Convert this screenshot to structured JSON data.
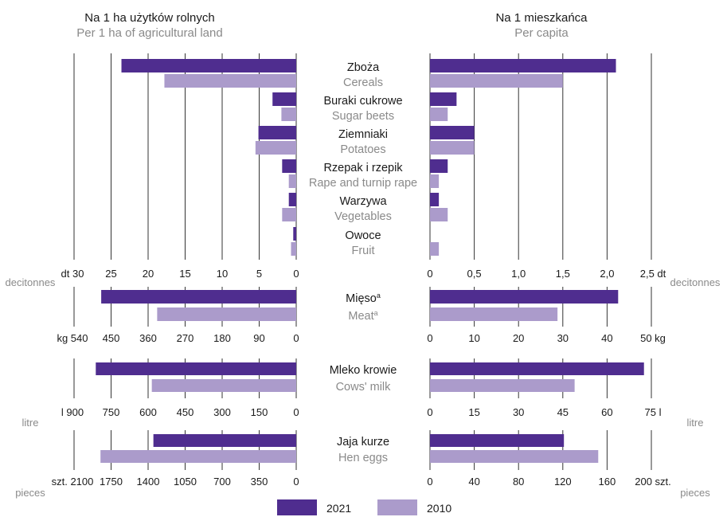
{
  "colors": {
    "y2021": "#4f2d8f",
    "y2010": "#ab9bcb",
    "grid": "#333333",
    "text": "#1a1a1a",
    "muted": "#8a8a8a"
  },
  "headers": {
    "left_pl": "Na 1 ha użytków rolnych",
    "left_en": "Per 1 ha of agricultural land",
    "right_pl": "Na 1 mieszkańca",
    "right_en": "Per capita"
  },
  "legend": [
    {
      "name": "2021",
      "color": "#4f2d8f"
    },
    {
      "name": "2010",
      "color": "#ab9bcb"
    }
  ],
  "chart_data": [
    {
      "type": "bar",
      "panel": "crops-per-ha",
      "categories": [
        "Zboża",
        "Buraki cukrowe",
        "Ziemniaki",
        "Rzepak i rzepik",
        "Warzywa",
        "Owoce"
      ],
      "categories_en": [
        "Cereals",
        "Sugar beets",
        "Potatoes",
        "Rape and turnip rape",
        "Vegetables",
        "Fruit"
      ],
      "series": [
        {
          "name": "2021",
          "values": [
            23.6,
            3.2,
            5.1,
            1.9,
            1.0,
            0.4
          ]
        },
        {
          "name": "2010",
          "values": [
            17.8,
            2.0,
            5.5,
            1.0,
            1.9,
            0.7
          ]
        }
      ],
      "xlim": [
        0,
        30
      ],
      "ticks": [
        "dt 30",
        "25",
        "20",
        "15",
        "10",
        "5",
        "0"
      ],
      "tick_values": [
        30,
        25,
        20,
        15,
        10,
        5,
        0
      ],
      "unit_en": "decitonnes"
    },
    {
      "type": "bar",
      "panel": "crops-per-capita",
      "categories": [
        "Zboża",
        "Buraki cukrowe",
        "Ziemniaki",
        "Rzepak i rzepik",
        "Warzywa",
        "Owoce"
      ],
      "series": [
        {
          "name": "2021",
          "values": [
            2.1,
            0.3,
            0.5,
            0.2,
            0.1,
            0.0
          ]
        },
        {
          "name": "2010",
          "values": [
            1.5,
            0.2,
            0.5,
            0.1,
            0.2,
            0.1
          ]
        }
      ],
      "xlim": [
        0,
        2.5
      ],
      "ticks": [
        "0",
        "0,5",
        "1,0",
        "1,5",
        "2,0",
        "2,5 dt"
      ],
      "tick_values": [
        0,
        0.5,
        1.0,
        1.5,
        2.0,
        2.5
      ],
      "unit_en": "decitonnes"
    },
    {
      "type": "bar",
      "panel": "meat-per-ha",
      "categories": [
        "Mięso"
      ],
      "categories_en": [
        "Meat"
      ],
      "superscript": "a",
      "series": [
        {
          "name": "2021",
          "values": [
            474
          ]
        },
        {
          "name": "2010",
          "values": [
            338
          ]
        }
      ],
      "xlim": [
        0,
        540
      ],
      "ticks": [
        "kg 540",
        "450",
        "360",
        "270",
        "180",
        "90",
        "0"
      ],
      "tick_values": [
        540,
        450,
        360,
        270,
        180,
        90,
        0
      ]
    },
    {
      "type": "bar",
      "panel": "meat-per-capita",
      "categories": [
        "Mięso"
      ],
      "series": [
        {
          "name": "2021",
          "values": [
            42.5
          ]
        },
        {
          "name": "2010",
          "values": [
            28.8
          ]
        }
      ],
      "xlim": [
        0,
        50
      ],
      "ticks": [
        "0",
        "10",
        "20",
        "30",
        "40",
        "50 kg"
      ],
      "tick_values": [
        0,
        10,
        20,
        30,
        40,
        50
      ]
    },
    {
      "type": "bar",
      "panel": "milk-per-ha",
      "categories": [
        "Mleko krowie"
      ],
      "categories_en": [
        "Cows' milk"
      ],
      "series": [
        {
          "name": "2021",
          "values": [
            812
          ]
        },
        {
          "name": "2010",
          "values": [
            585
          ]
        }
      ],
      "xlim": [
        0,
        900
      ],
      "ticks": [
        "l  900",
        "750",
        "600",
        "450",
        "300",
        "150",
        "0"
      ],
      "tick_values": [
        900,
        750,
        600,
        450,
        300,
        150,
        0
      ],
      "unit_en": "litre"
    },
    {
      "type": "bar",
      "panel": "milk-per-capita",
      "categories": [
        "Mleko krowie"
      ],
      "series": [
        {
          "name": "2021",
          "values": [
            72.5
          ]
        },
        {
          "name": "2010",
          "values": [
            49.0
          ]
        }
      ],
      "xlim": [
        0,
        75
      ],
      "ticks": [
        "0",
        "15",
        "30",
        "45",
        "60",
        "75 l"
      ],
      "tick_values": [
        0,
        15,
        30,
        45,
        60,
        75
      ],
      "unit_en": "litre"
    },
    {
      "type": "bar",
      "panel": "eggs-per-ha",
      "categories": [
        "Jaja kurze"
      ],
      "categories_en": [
        "Hen eggs"
      ],
      "series": [
        {
          "name": "2021",
          "values": [
            1350
          ]
        },
        {
          "name": "2010",
          "values": [
            1850
          ]
        }
      ],
      "xlim": [
        0,
        2100
      ],
      "ticks": [
        "szt. 2100",
        "1750",
        "1400",
        "1050",
        "700",
        "350",
        "0"
      ],
      "tick_values": [
        2100,
        1750,
        1400,
        1050,
        700,
        350,
        0
      ],
      "unit_en": "pieces"
    },
    {
      "type": "bar",
      "panel": "eggs-per-capita",
      "categories": [
        "Jaja kurze"
      ],
      "series": [
        {
          "name": "2021",
          "values": [
            121
          ]
        },
        {
          "name": "2010",
          "values": [
            152
          ]
        }
      ],
      "xlim": [
        0,
        200
      ],
      "ticks": [
        "0",
        "40",
        "80",
        "120",
        "160",
        "200 szt."
      ],
      "tick_values": [
        0,
        40,
        80,
        120,
        160,
        200
      ],
      "unit_en": "pieces"
    }
  ]
}
